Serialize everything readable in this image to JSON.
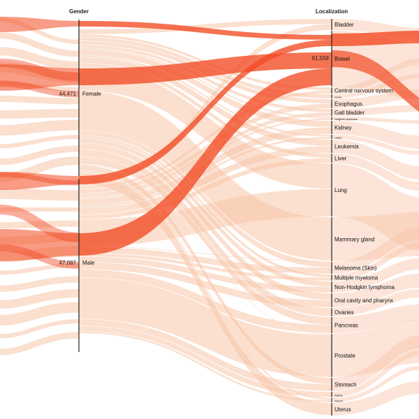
{
  "diagram": {
    "type": "parallel-sets",
    "dimensions": [
      {
        "name": "Gender",
        "categories": [
          {
            "label": "Female",
            "count": "44,471"
          },
          {
            "label": "Male",
            "count": "47,087"
          }
        ]
      },
      {
        "name": "Localization",
        "categories": [
          {
            "label": "Bladder"
          },
          {
            "label": "Bowel",
            "count": "91,558"
          },
          {
            "label": "Central nervous system"
          },
          {
            "label": "Cervix"
          },
          {
            "label": "Esophagus"
          },
          {
            "label": "Gall bladder"
          },
          {
            "label": "Hodgkins Lymphoma"
          },
          {
            "label": "Kidney"
          },
          {
            "label": "Larynx"
          },
          {
            "label": "Leukemia"
          },
          {
            "label": "Liver"
          },
          {
            "label": "Lung"
          },
          {
            "label": "Mammary gland"
          },
          {
            "label": "Melanoma (Skin)"
          },
          {
            "label": "Multiple myeloma"
          },
          {
            "label": "Non-Hodgkin lymphoma"
          },
          {
            "label": "Oral cavity and pharynx"
          },
          {
            "label": "Ovaries"
          },
          {
            "label": "Pancreas"
          },
          {
            "label": "Prostate"
          },
          {
            "label": "Stomach"
          },
          {
            "label": "Testicle"
          },
          {
            "label": "Thyroid"
          },
          {
            "label": "Uterus"
          }
        ]
      }
    ],
    "colors": {
      "ribbon": "#f8c4a8",
      "ribbon_highlight": "#f24a23",
      "axis": "#222222",
      "text": "#111111"
    }
  }
}
